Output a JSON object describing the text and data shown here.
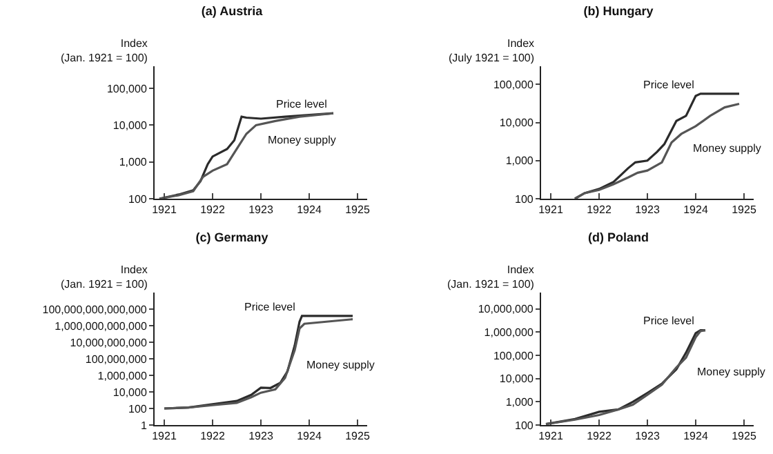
{
  "chart_data": [
    {
      "type": "line",
      "title": "(a) Austria",
      "ylabel": "Index\n(Jan. 1921 = 100)",
      "log": true,
      "grid": false,
      "legend": false,
      "xlim": [
        1920.8,
        1925.2
      ],
      "xticks": [
        1921,
        1922,
        1923,
        1924,
        1925
      ],
      "ylim": [
        100,
        400000
      ],
      "yticks": [
        {
          "value": 100,
          "label": "100"
        },
        {
          "value": 1000,
          "label": "1,000"
        },
        {
          "value": 10000,
          "label": "10,000"
        },
        {
          "value": 100000,
          "label": "100,000"
        }
      ],
      "series": [
        {
          "name": "Price level",
          "color": "#2b2b2b",
          "x": [
            1920.9,
            1921.3,
            1921.6,
            1921.75,
            1921.9,
            1922.0,
            1922.3,
            1922.45,
            1922.6,
            1922.7,
            1923.0,
            1923.5,
            1924.0,
            1924.5
          ],
          "values": [
            100,
            130,
            170,
            300,
            870,
            1400,
            2250,
            3900,
            17000,
            16000,
            15000,
            17000,
            19000,
            21000
          ]
        },
        {
          "name": "Money supply",
          "color": "#555555",
          "x": [
            1920.9,
            1921.3,
            1921.6,
            1921.8,
            1922.0,
            1922.3,
            1922.5,
            1922.7,
            1922.9,
            1923.3,
            1923.8,
            1924.5
          ],
          "values": [
            100,
            125,
            160,
            390,
            580,
            870,
            2250,
            5800,
            10000,
            13000,
            17000,
            21000
          ]
        }
      ]
    },
    {
      "type": "line",
      "title": "(b) Hungary",
      "ylabel": "Index\n(July 1921 = 100)",
      "log": true,
      "grid": false,
      "legend": false,
      "xlim": [
        1920.8,
        1925.2
      ],
      "xticks": [
        1921,
        1922,
        1923,
        1924,
        1925
      ],
      "ylim": [
        100,
        300000
      ],
      "yticks": [
        {
          "value": 100,
          "label": "100"
        },
        {
          "value": 1000,
          "label": "1,000"
        },
        {
          "value": 10000,
          "label": "10,000"
        },
        {
          "value": 100000,
          "label": "100,000"
        }
      ],
      "series": [
        {
          "name": "Price level",
          "color": "#2b2b2b",
          "x": [
            1921.5,
            1921.7,
            1922.0,
            1922.3,
            1922.6,
            1922.75,
            1923.0,
            1923.2,
            1923.35,
            1923.6,
            1923.8,
            1924.0,
            1924.1,
            1924.9
          ],
          "values": [
            100,
            140,
            180,
            275,
            630,
            900,
            1000,
            1700,
            2700,
            11000,
            15000,
            50000,
            57000,
            57000
          ]
        },
        {
          "name": "Money supply",
          "color": "#555555",
          "x": [
            1921.5,
            1921.7,
            1922.0,
            1922.3,
            1922.6,
            1922.8,
            1923.0,
            1923.3,
            1923.5,
            1923.7,
            1924.0,
            1924.3,
            1924.6,
            1924.9
          ],
          "values": [
            100,
            140,
            170,
            240,
            360,
            480,
            550,
            900,
            3000,
            5000,
            8000,
            15000,
            25000,
            31000
          ]
        }
      ]
    },
    {
      "type": "line",
      "title": "(c) Germany",
      "ylabel": "Index\n(Jan. 1921 = 100)",
      "log": true,
      "grid": false,
      "legend": false,
      "xlim": [
        1920.8,
        1925.2
      ],
      "xticks": [
        1921,
        1922,
        1923,
        1924,
        1925
      ],
      "ylim": [
        1,
        1e+16
      ],
      "yticks": [
        {
          "value": 1,
          "label": "1"
        },
        {
          "value": 100,
          "label": "100"
        },
        {
          "value": 10000,
          "label": "10,000"
        },
        {
          "value": 1000000,
          "label": "1,000,000"
        },
        {
          "value": 100000000,
          "label": "100,000,000"
        },
        {
          "value": 10000000000,
          "label": "10,000,000,000"
        },
        {
          "value": 1000000000000,
          "label": "1,000,000,000,000"
        },
        {
          "value": 100000000000000,
          "label": "100,000,000,000,000"
        }
      ],
      "series": [
        {
          "name": "Price level",
          "color": "#2b2b2b",
          "x": [
            1921.0,
            1921.5,
            1922.0,
            1922.5,
            1922.8,
            1923.0,
            1923.2,
            1923.4,
            1923.55,
            1923.7,
            1923.8,
            1923.85,
            1924.9
          ],
          "values": [
            100,
            130,
            320,
            800,
            4400,
            32000,
            30000,
            120000,
            3000000,
            4000000000,
            3000000000000,
            15000000000000,
            15000000000000
          ]
        },
        {
          "name": "Money supply",
          "color": "#555555",
          "x": [
            1921.0,
            1921.5,
            1922.0,
            1922.5,
            1922.8,
            1923.0,
            1923.3,
            1923.5,
            1923.7,
            1923.8,
            1923.9,
            1924.9
          ],
          "values": [
            100,
            130,
            250,
            480,
            2300,
            8000,
            20000,
            500000,
            1100000000,
            460000000000,
            1700000000000,
            6000000000000
          ]
        }
      ]
    },
    {
      "type": "line",
      "title": "(d) Poland",
      "ylabel": "Index\n(Jan. 1921 = 100)",
      "log": true,
      "grid": false,
      "legend": false,
      "xlim": [
        1920.8,
        1925.2
      ],
      "xticks": [
        1921,
        1922,
        1923,
        1924,
        1925
      ],
      "ylim": [
        100,
        50000000
      ],
      "yticks": [
        {
          "value": 100,
          "label": "100"
        },
        {
          "value": 1000,
          "label": "1,000"
        },
        {
          "value": 10000,
          "label": "10,000"
        },
        {
          "value": 100000,
          "label": "100,000"
        },
        {
          "value": 1000000,
          "label": "1,000,000"
        },
        {
          "value": 10000000,
          "label": "10,000,000"
        }
      ],
      "series": [
        {
          "name": "Price level",
          "color": "#2b2b2b",
          "x": [
            1920.9,
            1921.5,
            1922.0,
            1922.4,
            1922.7,
            1923.0,
            1923.3,
            1923.6,
            1923.8,
            1924.0,
            1924.1,
            1924.2
          ],
          "values": [
            110,
            180,
            370,
            470,
            1000,
            2400,
            6000,
            25000,
            130000,
            900000,
            1200000,
            1200000
          ]
        },
        {
          "name": "Money supply",
          "color": "#555555",
          "x": [
            1920.9,
            1921.5,
            1922.0,
            1922.4,
            1922.7,
            1923.0,
            1923.3,
            1923.6,
            1923.8,
            1924.0,
            1924.1,
            1924.2
          ],
          "values": [
            110,
            170,
            270,
            470,
            750,
            2000,
            5400,
            30000,
            80000,
            600000,
            1100000,
            1200000
          ]
        }
      ]
    }
  ]
}
